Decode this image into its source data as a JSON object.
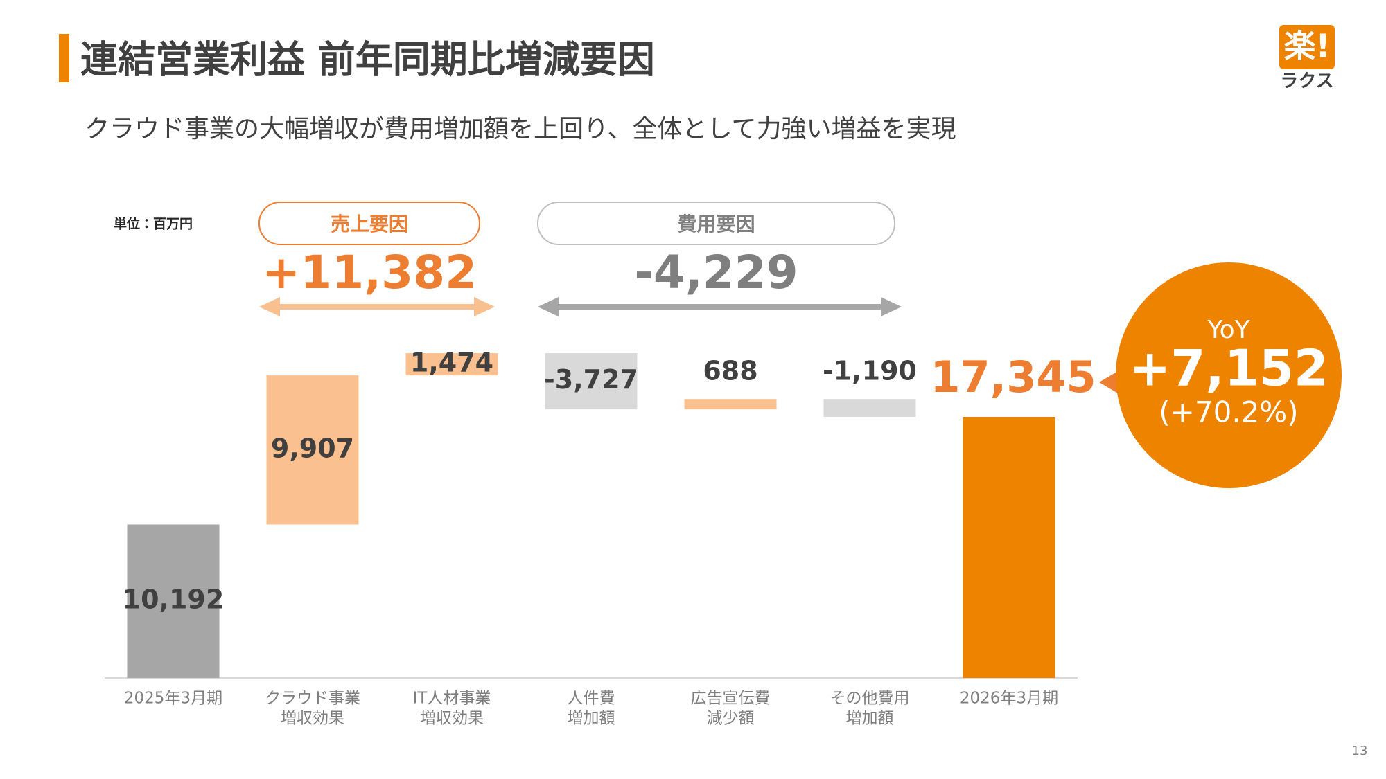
{
  "header": {
    "title": "連結営業利益 前年同期比増減要因",
    "subtitle": "クラウド事業の大幅増収が費用増加額を上回り、全体として力強い増益を実現",
    "logo_mark": "楽!",
    "logo_text": "ラクス"
  },
  "chart_data": {
    "type": "waterfall",
    "unit": "単位：百万円",
    "categories": [
      [
        "2025年3月期"
      ],
      [
        "クラウド事業",
        "増収効果"
      ],
      [
        "IT人材事業",
        "増収効果"
      ],
      [
        "人件費",
        "増加額"
      ],
      [
        "広告宣伝費",
        "減少額"
      ],
      [
        "その他費用",
        "増加額"
      ],
      [
        "2026年3月期"
      ]
    ],
    "measure": [
      "absolute",
      "relative",
      "relative",
      "relative",
      "relative",
      "relative",
      "total"
    ],
    "values": [
      10192,
      9907,
      1474,
      -3727,
      688,
      -1190,
      17345
    ],
    "value_labels": [
      "10,192",
      "9,907",
      "1,474",
      "-3,727",
      "688",
      "-1,190",
      "17,345"
    ],
    "colors": [
      "#a6a6a6",
      "#fbc08f",
      "#fbc08f",
      "#d9d9d9",
      "#fbc08f",
      "#d9d9d9",
      "#ee8300"
    ],
    "groups": [
      {
        "name": "売上要因",
        "total": "+11,382",
        "color": "#ed7d31"
      },
      {
        "name": "費用要因",
        "total": "-4,229",
        "color": "#7f7f7f"
      }
    ],
    "yoy": {
      "label": "YoY",
      "change": "+7,152",
      "percent": "(+70.2%)"
    }
  },
  "footer": {
    "page": "13"
  }
}
